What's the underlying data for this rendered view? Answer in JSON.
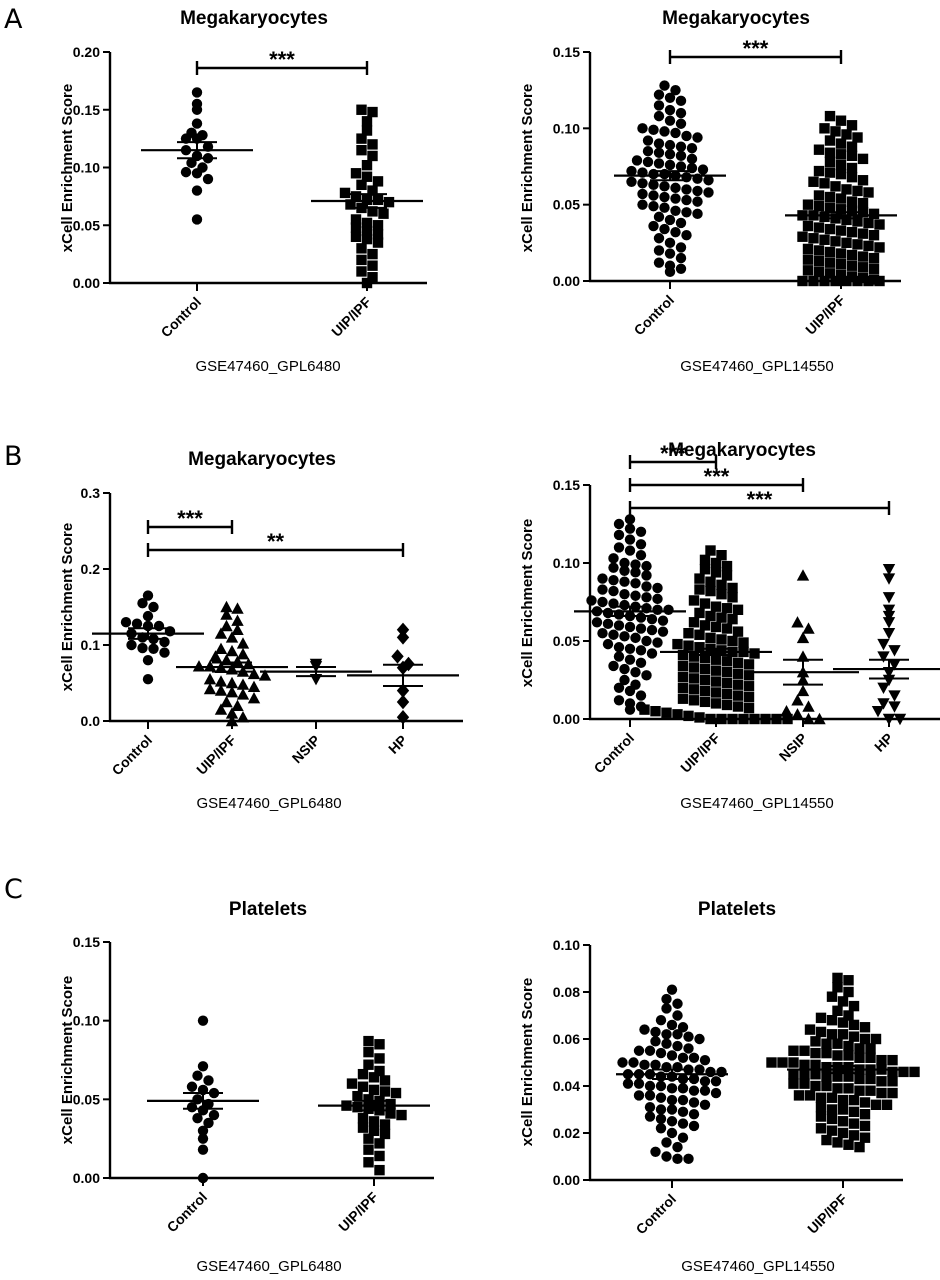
{
  "panel_labels": [
    "A",
    "B",
    "C"
  ],
  "chart_data": [
    {
      "type": "scatter",
      "panel": "A",
      "title": "Megakaryocytes",
      "ylabel": "xCell Enrichment Score",
      "xlabel": "GSE47460_GPL6480",
      "ylim": [
        0,
        0.2
      ],
      "yticks": [
        "0.00",
        "0.05",
        "0.10",
        "0.15",
        "0.20"
      ],
      "categories": [
        "Control",
        "UIP/IPF"
      ],
      "markers": [
        "circle",
        "square"
      ],
      "means": [
        0.115,
        0.071
      ],
      "sems": [
        0.007,
        0.006
      ],
      "points": [
        [
          0.165,
          0.155,
          0.15,
          0.138,
          0.13,
          0.128,
          0.125,
          0.125,
          0.118,
          0.115,
          0.11,
          0.108,
          0.104,
          0.1,
          0.096,
          0.095,
          0.09,
          0.08,
          0.055
        ],
        [
          0.15,
          0.148,
          0.14,
          0.132,
          0.125,
          0.12,
          0.115,
          0.11,
          0.102,
          0.095,
          0.092,
          0.088,
          0.085,
          0.08,
          0.078,
          0.075,
          0.072,
          0.072,
          0.07,
          0.068,
          0.065,
          0.062,
          0.06,
          0.055,
          0.052,
          0.05,
          0.048,
          0.045,
          0.042,
          0.04,
          0.038,
          0.035,
          0.03,
          0.025,
          0.02,
          0.015,
          0.01,
          0.005,
          0.0
        ]
      ],
      "comparisons": [
        {
          "from": 0,
          "to": 1,
          "label": "***"
        }
      ]
    },
    {
      "type": "scatter",
      "panel": "A",
      "title": "Megakaryocytes",
      "ylabel": "xCell Enrichment Score",
      "xlabel": "GSE47460_GPL14550",
      "ylim": [
        0,
        0.15
      ],
      "yticks": [
        "0.00",
        "0.05",
        "0.10",
        "0.15"
      ],
      "categories": [
        "Control",
        "UIP/IPF"
      ],
      "markers": [
        "circle",
        "square"
      ],
      "means": [
        0.069,
        0.043
      ],
      "sems": [
        0.003,
        0.002
      ],
      "points": [
        [
          0.128,
          0.125,
          0.122,
          0.12,
          0.118,
          0.115,
          0.112,
          0.11,
          0.108,
          0.105,
          0.103,
          0.1,
          0.099,
          0.098,
          0.097,
          0.095,
          0.094,
          0.092,
          0.09,
          0.089,
          0.088,
          0.087,
          0.085,
          0.084,
          0.083,
          0.082,
          0.08,
          0.079,
          0.078,
          0.077,
          0.076,
          0.075,
          0.074,
          0.073,
          0.072,
          0.071,
          0.07,
          0.07,
          0.069,
          0.068,
          0.067,
          0.066,
          0.065,
          0.064,
          0.063,
          0.062,
          0.061,
          0.06,
          0.059,
          0.058,
          0.057,
          0.056,
          0.055,
          0.054,
          0.053,
          0.052,
          0.05,
          0.049,
          0.048,
          0.046,
          0.045,
          0.044,
          0.042,
          0.04,
          0.038,
          0.036,
          0.034,
          0.032,
          0.03,
          0.028,
          0.025,
          0.022,
          0.02,
          0.018,
          0.015,
          0.012,
          0.01,
          0.008,
          0.006
        ],
        [
          0.108,
          0.105,
          0.102,
          0.1,
          0.098,
          0.096,
          0.094,
          0.092,
          0.09,
          0.088,
          0.086,
          0.084,
          0.083,
          0.082,
          0.08,
          0.078,
          0.076,
          0.074,
          0.072,
          0.071,
          0.07,
          0.068,
          0.066,
          0.065,
          0.064,
          0.062,
          0.06,
          0.059,
          0.058,
          0.056,
          0.055,
          0.054,
          0.052,
          0.051,
          0.05,
          0.049,
          0.048,
          0.047,
          0.046,
          0.045,
          0.044,
          0.043,
          0.043,
          0.042,
          0.041,
          0.04,
          0.039,
          0.038,
          0.037,
          0.036,
          0.035,
          0.034,
          0.033,
          0.032,
          0.031,
          0.03,
          0.029,
          0.028,
          0.027,
          0.026,
          0.025,
          0.024,
          0.023,
          0.022,
          0.021,
          0.02,
          0.019,
          0.018,
          0.017,
          0.016,
          0.015,
          0.014,
          0.013,
          0.012,
          0.011,
          0.01,
          0.009,
          0.008,
          0.007,
          0.006,
          0.005,
          0.004,
          0.003,
          0.002,
          0.001,
          0.0,
          0.0,
          0.0,
          0.0,
          0.0,
          0.0,
          0.0,
          0.0
        ]
      ],
      "comparisons": [
        {
          "from": 0,
          "to": 1,
          "label": "***"
        }
      ]
    },
    {
      "type": "scatter",
      "panel": "B",
      "title": "Megakaryocytes",
      "ylabel": "xCell Enrichment Score",
      "xlabel": "GSE47460_GPL6480",
      "ylim": [
        0,
        0.3
      ],
      "yticks": [
        "0.0",
        "0.1",
        "0.2",
        "0.3"
      ],
      "categories": [
        "Control",
        "UIP/IPF",
        "NSIP",
        "HP"
      ],
      "markers": [
        "circle",
        "triangle",
        "triangle-down",
        "diamond"
      ],
      "means": [
        0.115,
        0.071,
        0.065,
        0.06
      ],
      "sems": [
        0.007,
        0.006,
        0.006,
        0.014
      ],
      "points": [
        [
          0.165,
          0.155,
          0.15,
          0.138,
          0.13,
          0.128,
          0.125,
          0.125,
          0.118,
          0.115,
          0.11,
          0.108,
          0.104,
          0.1,
          0.096,
          0.095,
          0.09,
          0.08,
          0.055
        ],
        [
          0.15,
          0.148,
          0.14,
          0.132,
          0.125,
          0.12,
          0.115,
          0.11,
          0.102,
          0.095,
          0.092,
          0.088,
          0.085,
          0.08,
          0.078,
          0.075,
          0.072,
          0.072,
          0.07,
          0.068,
          0.065,
          0.062,
          0.06,
          0.055,
          0.052,
          0.05,
          0.048,
          0.045,
          0.042,
          0.04,
          0.038,
          0.035,
          0.03,
          0.025,
          0.02,
          0.015,
          0.01,
          0.005,
          0.0
        ],
        [
          0.075,
          0.072,
          0.055
        ],
        [
          0.12,
          0.11,
          0.085,
          0.075,
          0.07,
          0.04,
          0.025,
          0.005
        ]
      ],
      "comparisons": [
        {
          "from": 0,
          "to": 1,
          "label": "***"
        },
        {
          "from": 0,
          "to": 3,
          "label": "**"
        }
      ]
    },
    {
      "type": "scatter",
      "panel": "B",
      "title": "Megakaryocytes",
      "ylabel": "xCell Enrichment Score",
      "xlabel": "GSE47460_GPL14550",
      "ylim": [
        0,
        0.15
      ],
      "yticks": [
        "0.00",
        "0.05",
        "0.10",
        "0.15"
      ],
      "categories": [
        "Control",
        "UIP/IPF",
        "NSIP",
        "HP"
      ],
      "markers": [
        "circle",
        "square",
        "triangle",
        "triangle-down"
      ],
      "means": [
        0.069,
        0.043,
        0.03,
        0.032
      ],
      "sems": [
        0.003,
        0.002,
        0.008,
        0.006
      ],
      "points": [
        [
          0.128,
          0.125,
          0.122,
          0.12,
          0.118,
          0.115,
          0.112,
          0.11,
          0.108,
          0.105,
          0.103,
          0.1,
          0.099,
          0.098,
          0.097,
          0.095,
          0.094,
          0.092,
          0.09,
          0.089,
          0.088,
          0.087,
          0.085,
          0.084,
          0.083,
          0.082,
          0.08,
          0.079,
          0.078,
          0.077,
          0.076,
          0.075,
          0.074,
          0.073,
          0.072,
          0.071,
          0.07,
          0.07,
          0.069,
          0.068,
          0.067,
          0.066,
          0.065,
          0.064,
          0.063,
          0.062,
          0.061,
          0.06,
          0.059,
          0.058,
          0.057,
          0.056,
          0.055,
          0.054,
          0.053,
          0.052,
          0.05,
          0.049,
          0.048,
          0.046,
          0.045,
          0.044,
          0.042,
          0.04,
          0.038,
          0.036,
          0.034,
          0.032,
          0.03,
          0.028,
          0.025,
          0.022,
          0.02,
          0.018,
          0.015,
          0.012,
          0.01,
          0.008,
          0.006
        ],
        [
          0.108,
          0.105,
          0.102,
          0.1,
          0.098,
          0.096,
          0.094,
          0.092,
          0.09,
          0.088,
          0.086,
          0.084,
          0.083,
          0.082,
          0.08,
          0.078,
          0.076,
          0.074,
          0.072,
          0.071,
          0.07,
          0.068,
          0.066,
          0.065,
          0.064,
          0.062,
          0.06,
          0.059,
          0.058,
          0.056,
          0.055,
          0.054,
          0.052,
          0.051,
          0.05,
          0.049,
          0.048,
          0.047,
          0.046,
          0.045,
          0.044,
          0.043,
          0.043,
          0.042,
          0.041,
          0.04,
          0.039,
          0.038,
          0.037,
          0.036,
          0.035,
          0.034,
          0.033,
          0.032,
          0.031,
          0.03,
          0.029,
          0.028,
          0.027,
          0.026,
          0.025,
          0.024,
          0.023,
          0.022,
          0.021,
          0.02,
          0.019,
          0.018,
          0.017,
          0.016,
          0.015,
          0.014,
          0.013,
          0.012,
          0.011,
          0.01,
          0.009,
          0.008,
          0.007,
          0.006,
          0.005,
          0.004,
          0.003,
          0.002,
          0.001,
          0.0,
          0.0,
          0.0,
          0.0,
          0.0,
          0.0,
          0.0,
          0.0
        ],
        [
          0.092,
          0.062,
          0.058,
          0.052,
          0.04,
          0.03,
          0.025,
          0.018,
          0.012,
          0.008,
          0.005,
          0.003,
          0.0,
          0.0
        ],
        [
          0.096,
          0.09,
          0.078,
          0.07,
          0.066,
          0.062,
          0.055,
          0.048,
          0.044,
          0.04,
          0.035,
          0.03,
          0.025,
          0.02,
          0.015,
          0.01,
          0.008,
          0.005,
          0.0,
          0.0
        ]
      ],
      "comparisons": [
        {
          "from": 0,
          "to": 1,
          "label": "***"
        },
        {
          "from": 0,
          "to": 2,
          "label": "***"
        },
        {
          "from": 0,
          "to": 3,
          "label": "***"
        }
      ]
    },
    {
      "type": "scatter",
      "panel": "C",
      "title": "Platelets",
      "ylabel": "xCell Enrichment Score",
      "xlabel": "GSE47460_GPL6480",
      "ylim": [
        0,
        0.15
      ],
      "yticks": [
        "0.00",
        "0.05",
        "0.10",
        "0.15"
      ],
      "categories": [
        "Control",
        "UIP/IPF"
      ],
      "markers": [
        "circle",
        "square"
      ],
      "means": [
        0.049,
        0.046
      ],
      "sems": [
        0.005,
        0.003
      ],
      "points": [
        [
          0.1,
          0.071,
          0.065,
          0.062,
          0.058,
          0.056,
          0.054,
          0.05,
          0.047,
          0.045,
          0.043,
          0.04,
          0.038,
          0.035,
          0.03,
          0.025,
          0.018,
          0.0
        ],
        [
          0.087,
          0.085,
          0.08,
          0.076,
          0.072,
          0.068,
          0.066,
          0.064,
          0.062,
          0.06,
          0.058,
          0.056,
          0.055,
          0.054,
          0.052,
          0.05,
          0.049,
          0.047,
          0.046,
          0.045,
          0.044,
          0.043,
          0.041,
          0.04,
          0.038,
          0.036,
          0.034,
          0.032,
          0.03,
          0.028,
          0.025,
          0.022,
          0.018,
          0.014,
          0.01,
          0.005
        ]
      ],
      "comparisons": []
    },
    {
      "type": "scatter",
      "panel": "C",
      "title": "Platelets",
      "ylabel": "xCell Enrichment Score",
      "xlabel": "GSE47460_GPL14550",
      "ylim": [
        0,
        0.1
      ],
      "yticks": [
        "0.00",
        "0.02",
        "0.04",
        "0.06",
        "0.08",
        "0.10"
      ],
      "categories": [
        "Control",
        "UIP/IPF"
      ],
      "markers": [
        "circle",
        "square"
      ],
      "means": [
        0.045,
        0.047
      ],
      "sems": [
        0.002,
        0.0015
      ],
      "points": [
        [
          0.081,
          0.077,
          0.075,
          0.073,
          0.07,
          0.068,
          0.066,
          0.065,
          0.064,
          0.063,
          0.062,
          0.062,
          0.061,
          0.06,
          0.059,
          0.058,
          0.057,
          0.056,
          0.055,
          0.055,
          0.054,
          0.053,
          0.052,
          0.052,
          0.051,
          0.05,
          0.05,
          0.049,
          0.049,
          0.048,
          0.048,
          0.047,
          0.047,
          0.046,
          0.046,
          0.045,
          0.045,
          0.045,
          0.044,
          0.044,
          0.043,
          0.043,
          0.042,
          0.042,
          0.041,
          0.041,
          0.04,
          0.04,
          0.039,
          0.039,
          0.038,
          0.038,
          0.037,
          0.036,
          0.036,
          0.035,
          0.034,
          0.034,
          0.033,
          0.032,
          0.031,
          0.03,
          0.03,
          0.029,
          0.028,
          0.027,
          0.026,
          0.025,
          0.024,
          0.023,
          0.022,
          0.02,
          0.018,
          0.016,
          0.014,
          0.012,
          0.01,
          0.009,
          0.009
        ],
        [
          0.086,
          0.085,
          0.082,
          0.08,
          0.078,
          0.076,
          0.074,
          0.072,
          0.07,
          0.069,
          0.068,
          0.067,
          0.066,
          0.065,
          0.064,
          0.063,
          0.062,
          0.062,
          0.061,
          0.06,
          0.06,
          0.059,
          0.058,
          0.058,
          0.057,
          0.056,
          0.056,
          0.055,
          0.055,
          0.054,
          0.054,
          0.053,
          0.053,
          0.052,
          0.052,
          0.051,
          0.051,
          0.05,
          0.05,
          0.05,
          0.049,
          0.049,
          0.048,
          0.048,
          0.048,
          0.047,
          0.047,
          0.047,
          0.046,
          0.046,
          0.046,
          0.045,
          0.045,
          0.045,
          0.044,
          0.044,
          0.044,
          0.043,
          0.043,
          0.042,
          0.042,
          0.041,
          0.041,
          0.04,
          0.04,
          0.039,
          0.039,
          0.038,
          0.038,
          0.037,
          0.037,
          0.036,
          0.036,
          0.035,
          0.035,
          0.034,
          0.034,
          0.033,
          0.032,
          0.032,
          0.031,
          0.03,
          0.03,
          0.029,
          0.028,
          0.027,
          0.026,
          0.025,
          0.024,
          0.023,
          0.022,
          0.021,
          0.02,
          0.019,
          0.018,
          0.017,
          0.016,
          0.015,
          0.014
        ]
      ],
      "comparisons": []
    }
  ]
}
